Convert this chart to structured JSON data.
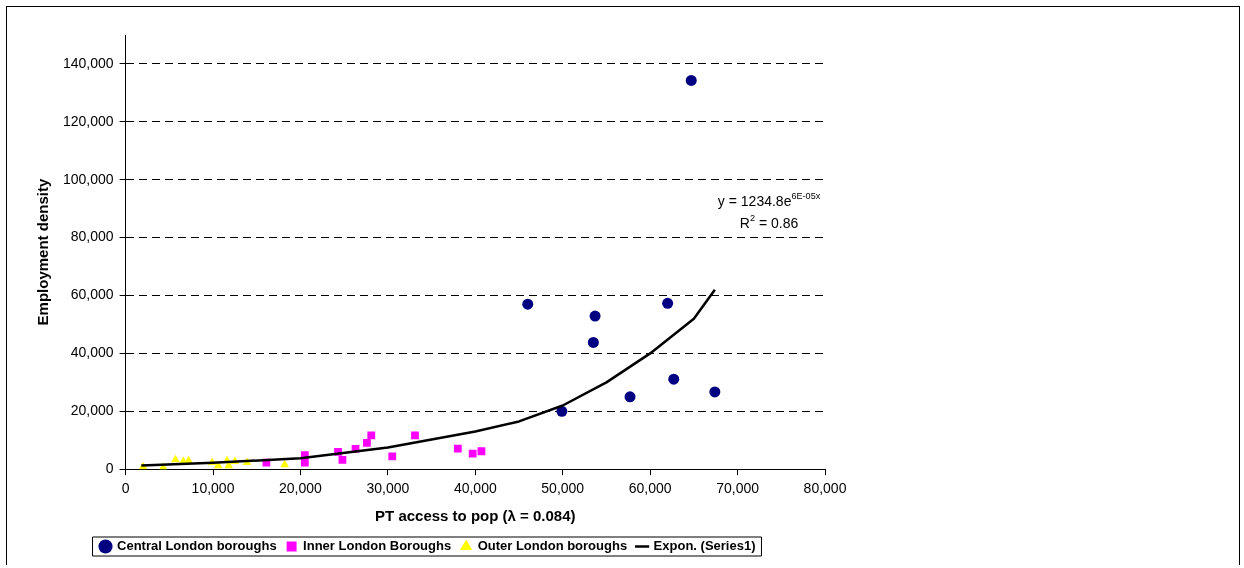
{
  "chart_data": {
    "type": "scatter",
    "xlabel": "PT access to pop (λ = 0.084)",
    "ylabel": "Employment density",
    "xlim": [
      0,
      80000
    ],
    "xticks": [
      {
        "value": 0,
        "label": "0"
      },
      {
        "value": 10000,
        "label": "10,000"
      },
      {
        "value": 20000,
        "label": "20,000"
      },
      {
        "value": 30000,
        "label": "30,000"
      },
      {
        "value": 40000,
        "label": "40,000"
      },
      {
        "value": 50000,
        "label": "50,000"
      },
      {
        "value": 60000,
        "label": "60,000"
      },
      {
        "value": 70000,
        "label": "70,000"
      },
      {
        "value": 80000,
        "label": "80,000"
      }
    ],
    "ylim": [
      0,
      150000
    ],
    "yticks": [
      {
        "value": 0,
        "label": "0"
      },
      {
        "value": 20000,
        "label": "20,000"
      },
      {
        "value": 40000,
        "label": "40,000"
      },
      {
        "value": 60000,
        "label": "60,000"
      },
      {
        "value": 80000,
        "label": "80,000"
      },
      {
        "value": 100000,
        "label": "100,000"
      },
      {
        "value": 120000,
        "label": "120,000"
      },
      {
        "value": 140000,
        "label": "140,000"
      }
    ],
    "grid": "y",
    "legend": "bottom",
    "series": [
      {
        "name": "Central London boroughs",
        "color": "#000080",
        "marker": "circle",
        "x": [
          46000,
          53700,
          62000,
          53500,
          49900,
          57700,
          62700,
          67400,
          64700
        ],
        "values": [
          57000,
          52900,
          57300,
          43800,
          20000,
          25000,
          31100,
          26700,
          134300
        ]
      },
      {
        "name": "Inner London Boroughs",
        "color": "#ff00ff",
        "marker": "square",
        "x": [
          16100,
          20500,
          20500,
          24300,
          24800,
          26300,
          27600,
          28100,
          30500,
          33100,
          38000,
          39700,
          40700
        ],
        "values": [
          2300,
          4900,
          2300,
          6000,
          3200,
          7000,
          9100,
          11700,
          4400,
          11700,
          7100,
          5400,
          6200
        ]
      },
      {
        "name": "Outer London boroughs",
        "color": "#ffff00",
        "marker": "triangle",
        "x": [
          2000,
          4300,
          5700,
          6600,
          7200,
          9900,
          10600,
          11600,
          11800,
          12500,
          13900,
          18200
        ],
        "values": [
          800,
          600,
          3300,
          2700,
          2900,
          2300,
          1200,
          2900,
          1200,
          2700,
          2300,
          1500
        ]
      },
      {
        "name": "Expon. (Series1)",
        "type": "line",
        "color": "#000000",
        "marker": "none",
        "line_style": "solid",
        "x": [
          1800,
          10000,
          20000,
          30000,
          40000,
          45000,
          50000,
          55000,
          60000,
          65000,
          67400
        ],
        "values": [
          1300,
          2200,
          3800,
          7500,
          13000,
          16500,
          22000,
          30000,
          40000,
          52000,
          62000
        ]
      }
    ],
    "annotations": [
      "y = 1234.8e$^{6E-05x}$",
      "R$^{2}$ = 0.86"
    ]
  }
}
